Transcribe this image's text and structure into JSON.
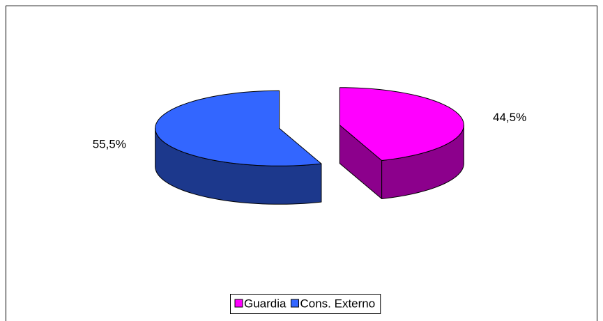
{
  "chart_data": {
    "type": "pie3d",
    "categories": [
      "Guardia",
      "Cons. Externo"
    ],
    "values": [
      44.5,
      55.5
    ],
    "value_labels": [
      "44,5%",
      "55,5%"
    ],
    "colors": [
      "#ff00ff",
      "#3366ff"
    ],
    "legend": "bottom"
  }
}
